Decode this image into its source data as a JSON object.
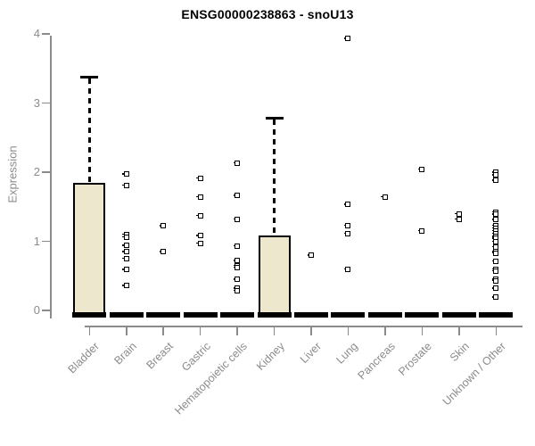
{
  "chart_data": {
    "type": "boxplot",
    "title": "ENSG00000238863 - snoU13",
    "ylabel": "Expression",
    "xlabel": "",
    "ylim": [
      0,
      4
    ],
    "yticks": [
      0,
      1,
      2,
      3,
      4
    ],
    "grid": false,
    "legend": "none",
    "marker": "open-square",
    "colors": {
      "box_fill": "#ECE7CD",
      "box_border": "#000000",
      "median": "#000000",
      "axis": "#8b8b8b",
      "tick_label": "#8b8b8b",
      "title": "#000000"
    },
    "categories": [
      "Bladder",
      "Brain",
      "Breast",
      "Gastric",
      "Hematopoietic cells",
      "Kidney",
      "Liver",
      "Lung",
      "Pancreas",
      "Prostate",
      "Skin",
      "Unknown / Other"
    ],
    "boxes": [
      {
        "label": "Bladder",
        "q1": 0,
        "median": 0,
        "q3": 1.85,
        "whisker_low": 0,
        "whisker_high": 3.4,
        "outliers": []
      },
      {
        "label": "Brain",
        "q1": 0,
        "median": 0,
        "q3": 0,
        "whisker_low": 0,
        "whisker_high": 0,
        "outliers": [
          1.97,
          1.81,
          1.1,
          1.06,
          0.94,
          0.85,
          0.75,
          0.59,
          0.36
        ]
      },
      {
        "label": "Breast",
        "q1": 0,
        "median": 0,
        "q3": 0,
        "whisker_low": 0,
        "whisker_high": 0,
        "outliers": [
          1.22,
          0.85
        ]
      },
      {
        "label": "Gastric",
        "q1": 0,
        "median": 0,
        "q3": 0,
        "whisker_low": 0,
        "whisker_high": 0,
        "outliers": [
          1.91,
          1.64,
          1.37,
          1.08,
          0.97
        ]
      },
      {
        "label": "Hematopoietic cells",
        "q1": 0,
        "median": 0,
        "q3": 0,
        "whisker_low": 0,
        "whisker_high": 0,
        "outliers": [
          2.13,
          1.66,
          1.32,
          0.93,
          0.72,
          0.65,
          0.62,
          0.45,
          0.32,
          0.29
        ]
      },
      {
        "label": "Kidney",
        "q1": 0,
        "median": 0,
        "q3": 1.08,
        "whisker_low": 0,
        "whisker_high": 2.8,
        "outliers": []
      },
      {
        "label": "Liver",
        "q1": 0,
        "median": 0,
        "q3": 0,
        "whisker_low": 0,
        "whisker_high": 0,
        "outliers": [
          0.8
        ]
      },
      {
        "label": "Lung",
        "q1": 0,
        "median": 0,
        "q3": 0,
        "whisker_low": 0,
        "whisker_high": 0,
        "outliers": [
          3.93,
          1.53,
          1.23,
          1.11,
          0.6
        ]
      },
      {
        "label": "Pancreas",
        "q1": 0,
        "median": 0,
        "q3": 0,
        "whisker_low": 0,
        "whisker_high": 0,
        "outliers": [
          1.64
        ]
      },
      {
        "label": "Prostate",
        "q1": 0,
        "median": 0,
        "q3": 0,
        "whisker_low": 0,
        "whisker_high": 0,
        "outliers": [
          2.04,
          1.15
        ]
      },
      {
        "label": "Skin",
        "q1": 0,
        "median": 0,
        "q3": 0,
        "whisker_low": 0,
        "whisker_high": 0,
        "outliers": [
          1.4,
          1.32
        ]
      },
      {
        "label": "Unknown / Other",
        "q1": 0,
        "median": 0,
        "q3": 0,
        "whisker_low": 0,
        "whisker_high": 0,
        "outliers": [
          2.0,
          1.96,
          1.88,
          1.42,
          1.39,
          1.31,
          1.23,
          1.19,
          1.15,
          1.11,
          1.07,
          1.04,
          1.0,
          0.92,
          0.85,
          0.83,
          0.71,
          0.6,
          0.57,
          0.45,
          0.43,
          0.32,
          0.19
        ]
      }
    ]
  }
}
